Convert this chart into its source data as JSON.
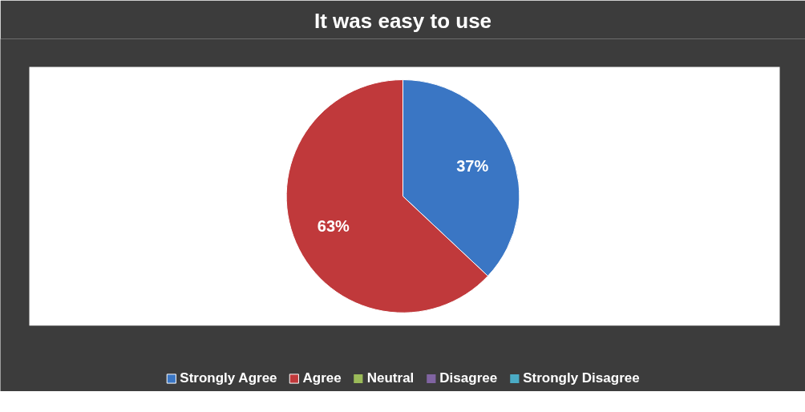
{
  "chart_data": {
    "type": "pie",
    "title": "It was easy to use",
    "categories": [
      "Strongly Agree",
      "Agree",
      "Neutral",
      "Disagree",
      "Strongly Disagree"
    ],
    "values": [
      37,
      63,
      0,
      0,
      0
    ],
    "value_labels": [
      "37%",
      "63%",
      null,
      null,
      null
    ],
    "colors": [
      "#3a76c4",
      "#c0393b",
      "#9bbb59",
      "#8064a2",
      "#4bacc6"
    ],
    "legend": "bottom"
  }
}
